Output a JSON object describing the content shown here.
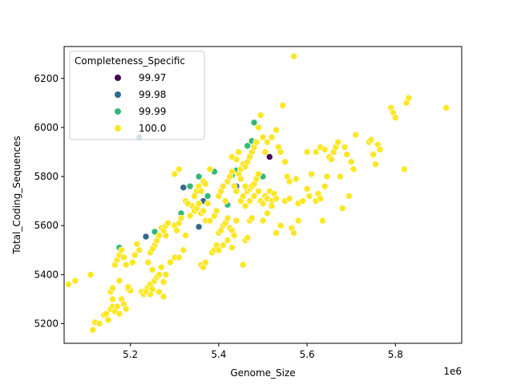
{
  "chart_data": {
    "type": "scatter",
    "xlabel": "Genome_Size",
    "ylabel": "Total_Coding_Sequences",
    "x_offset_label": "1e6",
    "x_scale": 1000000,
    "xlim": [
      5.05,
      5.95
    ],
    "ylim": [
      5120,
      6330
    ],
    "x_ticks": [
      5.2,
      5.4,
      5.6,
      5.8
    ],
    "x_tick_labels": [
      "5.2",
      "5.4",
      "5.6",
      "5.8"
    ],
    "y_ticks": [
      5200,
      5400,
      5600,
      5800,
      6000,
      6200
    ],
    "y_tick_labels": [
      "5200",
      "5400",
      "5600",
      "5800",
      "6000",
      "6200"
    ],
    "grid": false,
    "legend": {
      "title": "Completeness_Specific",
      "placement": "top-left",
      "entries": [
        {
          "label": "99.97",
          "color": "#440154"
        },
        {
          "label": "99.98",
          "color": "#31688e"
        },
        {
          "label": "99.99",
          "color": "#35b779"
        },
        {
          "label": "100.0",
          "color": "#fde725"
        }
      ]
    },
    "series": [
      {
        "name": "99.97",
        "color": "#440154",
        "points": [
          [
            5.515,
            5880
          ]
        ]
      },
      {
        "name": "99.98",
        "color": "#31688e",
        "points": [
          [
            5.22,
            5960
          ],
          [
            5.235,
            5555
          ],
          [
            5.32,
            5755
          ],
          [
            5.355,
            5595
          ],
          [
            5.365,
            5700
          ],
          [
            5.44,
            5760
          ]
        ]
      },
      {
        "name": "99.99",
        "color": "#35b779",
        "points": [
          [
            5.175,
            5510
          ],
          [
            5.255,
            5575
          ],
          [
            5.315,
            5650
          ],
          [
            5.335,
            5760
          ],
          [
            5.355,
            5800
          ],
          [
            5.375,
            5720
          ],
          [
            5.39,
            5820
          ],
          [
            5.42,
            5685
          ],
          [
            5.43,
            5805
          ],
          [
            5.44,
            5825
          ],
          [
            5.465,
            5925
          ],
          [
            5.475,
            5945
          ],
          [
            5.48,
            6020
          ],
          [
            5.5,
            5800
          ]
        ]
      },
      {
        "name": "100.0",
        "color": "#fde725",
        "points": [
          [
            5.06,
            5360
          ],
          [
            5.075,
            5375
          ],
          [
            5.11,
            5400
          ],
          [
            5.115,
            5175
          ],
          [
            5.12,
            5205
          ],
          [
            5.13,
            5200
          ],
          [
            5.14,
            5235
          ],
          [
            5.145,
            5240
          ],
          [
            5.15,
            5215
          ],
          [
            5.155,
            5260
          ],
          [
            5.16,
            5270
          ],
          [
            5.165,
            5250
          ],
          [
            5.17,
            5270
          ],
          [
            5.16,
            5300
          ],
          [
            5.175,
            5240
          ],
          [
            5.18,
            5300
          ],
          [
            5.185,
            5280
          ],
          [
            5.19,
            5260
          ],
          [
            5.155,
            5330
          ],
          [
            5.16,
            5345
          ],
          [
            5.165,
            5440
          ],
          [
            5.17,
            5460
          ],
          [
            5.175,
            5480
          ],
          [
            5.175,
            5375
          ],
          [
            5.18,
            5500
          ],
          [
            5.185,
            5470
          ],
          [
            5.19,
            5440
          ],
          [
            5.195,
            5340
          ],
          [
            5.2,
            5335
          ],
          [
            5.205,
            5450
          ],
          [
            5.21,
            5480
          ],
          [
            5.215,
            5525
          ],
          [
            5.22,
            5500
          ],
          [
            5.225,
            5330
          ],
          [
            5.23,
            5320
          ],
          [
            5.235,
            5340
          ],
          [
            5.24,
            5350
          ],
          [
            5.245,
            5360
          ],
          [
            5.25,
            5420
          ],
          [
            5.255,
            5375
          ],
          [
            5.26,
            5390
          ],
          [
            5.265,
            5400
          ],
          [
            5.27,
            5430
          ],
          [
            5.275,
            5370
          ],
          [
            5.28,
            5560
          ],
          [
            5.255,
            5520
          ],
          [
            5.26,
            5540
          ],
          [
            5.265,
            5560
          ],
          [
            5.27,
            5590
          ],
          [
            5.275,
            5580
          ],
          [
            5.28,
            5600
          ],
          [
            5.285,
            5610
          ],
          [
            5.245,
            5490
          ],
          [
            5.25,
            5505
          ],
          [
            5.24,
            5450
          ],
          [
            5.3,
            5470
          ],
          [
            5.3,
            5600
          ],
          [
            5.305,
            5580
          ],
          [
            5.31,
            5610
          ],
          [
            5.315,
            5630
          ],
          [
            5.3,
            5810
          ],
          [
            5.31,
            5830
          ],
          [
            5.325,
            5700
          ],
          [
            5.33,
            5690
          ],
          [
            5.335,
            5640
          ],
          [
            5.34,
            5680
          ],
          [
            5.345,
            5660
          ],
          [
            5.35,
            5670
          ],
          [
            5.355,
            5690
          ],
          [
            5.36,
            5650
          ],
          [
            5.365,
            5660
          ],
          [
            5.37,
            5620
          ],
          [
            5.35,
            5740
          ],
          [
            5.355,
            5760
          ],
          [
            5.36,
            5740
          ],
          [
            5.365,
            5780
          ],
          [
            5.37,
            5770
          ],
          [
            5.375,
            5690
          ],
          [
            5.38,
            5830
          ],
          [
            5.385,
            5490
          ],
          [
            5.39,
            5500
          ],
          [
            5.395,
            5520
          ],
          [
            5.4,
            5570
          ],
          [
            5.405,
            5580
          ],
          [
            5.41,
            5600
          ],
          [
            5.415,
            5610
          ],
          [
            5.42,
            5630
          ],
          [
            5.425,
            5590
          ],
          [
            5.43,
            5580
          ],
          [
            5.435,
            5560
          ],
          [
            5.44,
            5620
          ],
          [
            5.36,
            5440
          ],
          [
            5.365,
            5430
          ],
          [
            5.37,
            5450
          ],
          [
            5.4,
            5500
          ],
          [
            5.41,
            5520
          ],
          [
            5.42,
            5540
          ],
          [
            5.43,
            5510
          ],
          [
            5.455,
            5440
          ],
          [
            5.46,
            5540
          ],
          [
            5.465,
            5550
          ],
          [
            5.47,
            5620
          ],
          [
            5.475,
            5630
          ],
          [
            5.45,
            5700
          ],
          [
            5.455,
            5720
          ],
          [
            5.46,
            5680
          ],
          [
            5.465,
            5740
          ],
          [
            5.47,
            5750
          ],
          [
            5.475,
            5760
          ],
          [
            5.48,
            5770
          ],
          [
            5.485,
            5790
          ],
          [
            5.49,
            5810
          ],
          [
            5.495,
            5700
          ],
          [
            5.5,
            5690
          ],
          [
            5.505,
            5720
          ],
          [
            5.51,
            5710
          ],
          [
            5.515,
            5740
          ],
          [
            5.52,
            5700
          ],
          [
            5.525,
            5730
          ],
          [
            5.53,
            5710
          ],
          [
            5.4,
            5720
          ],
          [
            5.405,
            5740
          ],
          [
            5.41,
            5760
          ],
          [
            5.415,
            5700
          ],
          [
            5.42,
            5780
          ],
          [
            5.425,
            5800
          ],
          [
            5.43,
            5820
          ],
          [
            5.435,
            5760
          ],
          [
            5.44,
            5740
          ],
          [
            5.445,
            5810
          ],
          [
            5.45,
            5830
          ],
          [
            5.455,
            5850
          ],
          [
            5.46,
            5840
          ],
          [
            5.465,
            5860
          ],
          [
            5.47,
            5880
          ],
          [
            5.475,
            5900
          ],
          [
            5.48,
            5920
          ],
          [
            5.485,
            5940
          ],
          [
            5.49,
            6000
          ],
          [
            5.495,
            6050
          ],
          [
            5.5,
            5960
          ],
          [
            5.505,
            5900
          ],
          [
            5.51,
            5940
          ],
          [
            5.52,
            5960
          ],
          [
            5.53,
            5990
          ],
          [
            5.535,
            5920
          ],
          [
            5.54,
            5900
          ],
          [
            5.545,
            6090
          ],
          [
            5.55,
            5860
          ],
          [
            5.555,
            5800
          ],
          [
            5.56,
            5780
          ],
          [
            5.57,
            6290
          ],
          [
            5.575,
            5790
          ],
          [
            5.44,
            5870
          ],
          [
            5.445,
            5900
          ],
          [
            5.43,
            5880
          ],
          [
            5.38,
            5620
          ],
          [
            5.39,
            5640
          ],
          [
            5.395,
            5660
          ],
          [
            5.53,
            5570
          ],
          [
            5.54,
            5600
          ],
          [
            5.55,
            5700
          ],
          [
            5.56,
            5710
          ],
          [
            5.565,
            5590
          ],
          [
            5.57,
            5570
          ],
          [
            5.58,
            5690
          ],
          [
            5.59,
            5700
          ],
          [
            5.6,
            5750
          ],
          [
            5.605,
            5720
          ],
          [
            5.61,
            5810
          ],
          [
            5.62,
            5700
          ],
          [
            5.625,
            5730
          ],
          [
            5.63,
            5710
          ],
          [
            5.635,
            5620
          ],
          [
            5.64,
            5760
          ],
          [
            5.645,
            5800
          ],
          [
            5.65,
            5880
          ],
          [
            5.655,
            5870
          ],
          [
            5.66,
            5900
          ],
          [
            5.665,
            5920
          ],
          [
            5.67,
            5940
          ],
          [
            5.675,
            5800
          ],
          [
            5.68,
            5670
          ],
          [
            5.685,
            5920
          ],
          [
            5.69,
            5890
          ],
          [
            5.695,
            5720
          ],
          [
            5.7,
            5860
          ],
          [
            5.705,
            5830
          ],
          [
            5.71,
            5970
          ],
          [
            5.62,
            5900
          ],
          [
            5.63,
            5920
          ],
          [
            5.64,
            5910
          ],
          [
            5.74,
            5940
          ],
          [
            5.745,
            5950
          ],
          [
            5.75,
            5890
          ],
          [
            5.755,
            5850
          ],
          [
            5.76,
            5930
          ],
          [
            5.765,
            5910
          ],
          [
            5.79,
            6080
          ],
          [
            5.795,
            6060
          ],
          [
            5.8,
            6040
          ],
          [
            5.82,
            5830
          ],
          [
            5.825,
            6100
          ],
          [
            5.83,
            6120
          ],
          [
            5.915,
            6080
          ],
          [
            5.6,
            5900
          ],
          [
            5.58,
            5620
          ],
          [
            5.52,
            5680
          ],
          [
            5.51,
            5650
          ],
          [
            5.5,
            5620
          ],
          [
            5.49,
            5740
          ],
          [
            5.48,
            5720
          ],
          [
            5.47,
            5700
          ],
          [
            5.46,
            5760
          ],
          [
            5.45,
            5790
          ],
          [
            5.345,
            5720
          ],
          [
            5.33,
            5690
          ],
          [
            5.325,
            5560
          ],
          [
            5.32,
            5500
          ],
          [
            5.31,
            5470
          ],
          [
            5.29,
            5450
          ],
          [
            5.28,
            5400
          ],
          [
            5.275,
            5310
          ],
          [
            5.265,
            5330
          ],
          [
            5.25,
            5340
          ],
          [
            5.245,
            5320
          ],
          [
            5.235,
            5330
          ],
          [
            5.195,
            5350
          ]
        ]
      }
    ]
  }
}
